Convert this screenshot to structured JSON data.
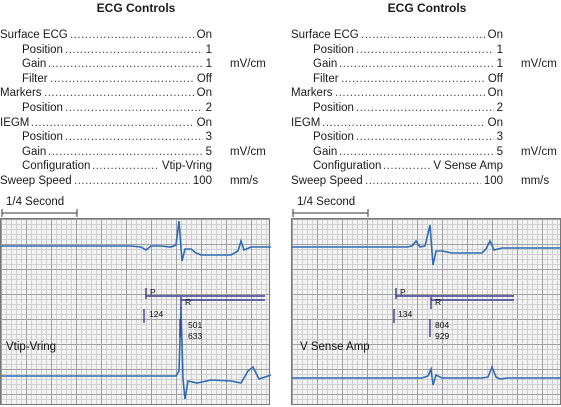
{
  "title": "ECG Controls",
  "rows": [
    {
      "label": "Surface ECG",
      "value": "On",
      "indent": false,
      "unit": ""
    },
    {
      "label": "Position",
      "value": "1",
      "indent": true,
      "unit": ""
    },
    {
      "label": "Gain",
      "value": "1",
      "indent": true,
      "unit": "mV/cm"
    },
    {
      "label": "Filter",
      "value": "Off",
      "indent": true,
      "unit": ""
    },
    {
      "label": "Markers",
      "value": "On",
      "indent": false,
      "unit": ""
    },
    {
      "label": "Position",
      "value": "2",
      "indent": true,
      "unit": ""
    },
    {
      "label": "IEGM",
      "value": "On",
      "indent": false,
      "unit": ""
    },
    {
      "label": "Position",
      "value": "3",
      "indent": true,
      "unit": ""
    },
    {
      "label": "Gain",
      "value": "5",
      "indent": true,
      "unit": "mV/cm"
    },
    {
      "label": "Configuration",
      "value": "Vtip-Vring",
      "indent": true,
      "unit": ""
    },
    {
      "label": "Sweep Speed",
      "value": "100",
      "indent": false,
      "unit": "mm/s"
    }
  ],
  "panels": [
    {
      "title": "ECG Controls",
      "configuration": "Vtip-Vring",
      "scale_label": "1/4 Second",
      "marker_p": "P",
      "marker_r": "R",
      "interval_p": "124",
      "interval_r1": "501",
      "interval_r2": "633",
      "trace_label": "Vtip-Vring"
    },
    {
      "title": "ECG Controls",
      "configuration": "V Sense Amp",
      "scale_label": "1/4 Second",
      "marker_p": "P",
      "marker_r": "R",
      "interval_p": "134",
      "interval_r1": "804",
      "interval_r2": "929",
      "trace_label": "V Sense Amp"
    }
  ],
  "colors": {
    "trace": "#2f6bb5",
    "marker": "#3a3a8c"
  }
}
